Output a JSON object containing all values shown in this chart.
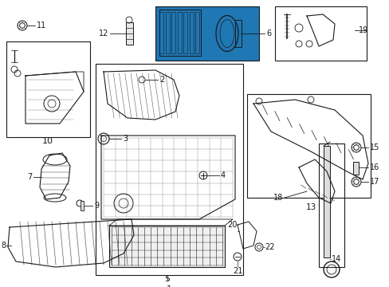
{
  "bg_color": "#ffffff",
  "line_color": "#1a1a1a",
  "fig_width": 4.89,
  "fig_height": 3.6,
  "dpi": 100,
  "font_size": 7.0,
  "lw": 0.7
}
